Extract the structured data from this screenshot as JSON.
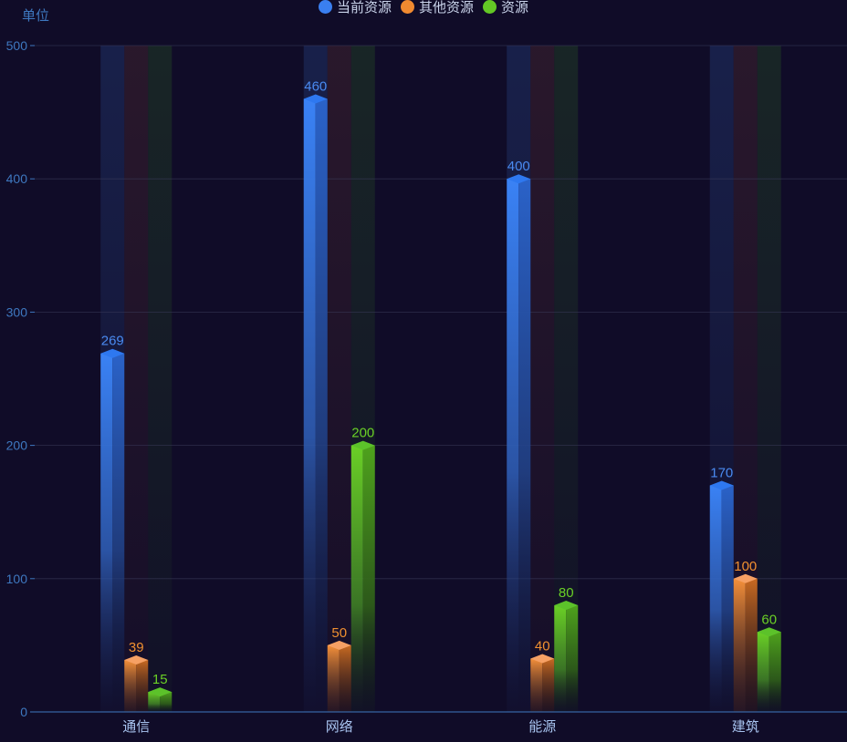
{
  "legend": [
    {
      "label": "当前资源",
      "color": "#3a7ff0"
    },
    {
      "label": "其他资源",
      "color": "#f08a30"
    },
    {
      "label": "资源",
      "color": "#63c825"
    }
  ],
  "chart_data": {
    "type": "bar",
    "ylabel": "单位",
    "ylim": [
      0,
      500
    ],
    "yticks": [
      0,
      100,
      200,
      300,
      400,
      500
    ],
    "categories": [
      "通信",
      "网络",
      "能源",
      "建筑"
    ],
    "series": [
      {
        "name": "当前资源",
        "color": "#3a7ff0",
        "values": [
          269,
          460,
          400,
          170
        ]
      },
      {
        "name": "其他资源",
        "color": "#f08a30",
        "values": [
          39,
          50,
          40,
          100
        ]
      },
      {
        "name": "资源",
        "color": "#63c825",
        "values": [
          15,
          200,
          80,
          60
        ]
      }
    ],
    "grid": true,
    "legend_position": "top-center"
  }
}
